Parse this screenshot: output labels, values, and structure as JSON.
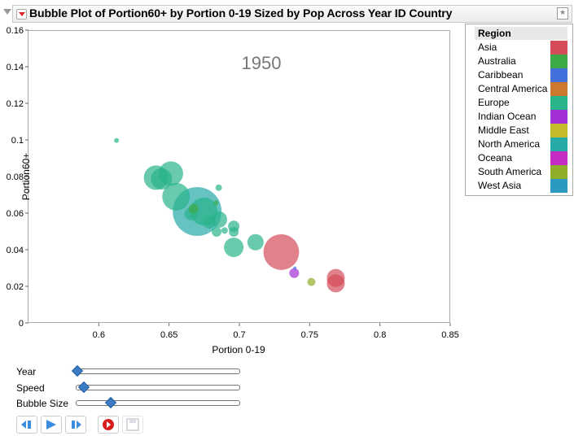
{
  "header": {
    "title": "Bubble Plot of Portion60+ by Portion 0-19 Sized by Pop Across Year ID Country"
  },
  "chart_data": {
    "type": "scatter",
    "title": "Bubble Plot of Portion60+ by Portion 0-19 Sized by Pop Across Year ID Country",
    "xlabel": "Portion 0-19",
    "ylabel": "Portion60+",
    "xlim": [
      0.55,
      0.85
    ],
    "ylim": [
      0,
      0.16
    ],
    "xticks": [
      "0.6",
      "0.65",
      "0.7",
      "0.75",
      "0.8",
      "0.85"
    ],
    "yticks": [
      "0",
      "0.02",
      "0.04",
      "0.06",
      "0.08",
      "0.1",
      "0.12",
      "0.14",
      "0.16"
    ],
    "grid": false,
    "frame_label": "1950",
    "points": [
      {
        "region": "North America",
        "x": 0.67,
        "y": 0.0609,
        "size": 900
      },
      {
        "region": "Asia",
        "x": 0.7298,
        "y": 0.0387,
        "size": 480
      },
      {
        "region": "Europe",
        "x": 0.655,
        "y": 0.069,
        "size": 290
      },
      {
        "region": "Europe",
        "x": 0.6747,
        "y": 0.0609,
        "size": 290
      },
      {
        "region": "Europe",
        "x": 0.6407,
        "y": 0.0794,
        "size": 225
      },
      {
        "region": "Europe",
        "x": 0.6513,
        "y": 0.0816,
        "size": 225
      },
      {
        "region": "Europe",
        "x": 0.6446,
        "y": 0.0787,
        "size": 170
      },
      {
        "region": "Europe",
        "x": 0.696,
        "y": 0.0413,
        "size": 144
      },
      {
        "region": "Asia",
        "x": 0.7686,
        "y": 0.0246,
        "size": 121
      },
      {
        "region": "Asia",
        "x": 0.7686,
        "y": 0.0216,
        "size": 121
      },
      {
        "region": "Europe",
        "x": 0.7115,
        "y": 0.0441,
        "size": 100
      },
      {
        "region": "Europe",
        "x": 0.6855,
        "y": 0.0565,
        "size": 100
      },
      {
        "region": "Europe",
        "x": 0.6655,
        "y": 0.0596,
        "size": 64
      },
      {
        "region": "Europe",
        "x": 0.6785,
        "y": 0.0551,
        "size": 64
      },
      {
        "region": "Europe",
        "x": 0.696,
        "y": 0.0528,
        "size": 49
      },
      {
        "region": "Europe",
        "x": 0.696,
        "y": 0.0498,
        "size": 36
      },
      {
        "region": "Europe",
        "x": 0.6838,
        "y": 0.0498,
        "size": 36
      },
      {
        "region": "Europe",
        "x": 0.6895,
        "y": 0.0505,
        "size": 16
      },
      {
        "region": "Australia",
        "x": 0.6674,
        "y": 0.0624,
        "size": 36
      },
      {
        "region": "Australia",
        "x": 0.6835,
        "y": 0.0656,
        "size": 9
      },
      {
        "region": "Indian Ocean",
        "x": 0.739,
        "y": 0.0272,
        "size": 36
      },
      {
        "region": "South America",
        "x": 0.7512,
        "y": 0.0224,
        "size": 25
      },
      {
        "region": "Europe",
        "x": 0.6853,
        "y": 0.0739,
        "size": 16
      },
      {
        "region": "Europe",
        "x": 0.6126,
        "y": 0.0997,
        "size": 9
      },
      {
        "region": "Caribbean",
        "x": 0.7395,
        "y": 0.03,
        "size": 4
      }
    ]
  },
  "legend": {
    "title": "Region",
    "items": [
      {
        "label": "Asia",
        "color": "#d44b5a"
      },
      {
        "label": "Australia",
        "color": "#3daa48"
      },
      {
        "label": "Caribbean",
        "color": "#4470dc"
      },
      {
        "label": "Central America",
        "color": "#cc782e"
      },
      {
        "label": "Europe",
        "color": "#29b48a"
      },
      {
        "label": "Indian Ocean",
        "color": "#a22ed6"
      },
      {
        "label": "Middle East",
        "color": "#c4ba2a"
      },
      {
        "label": "North America",
        "color": "#26aaa8"
      },
      {
        "label": "Oceana",
        "color": "#c42ac4"
      },
      {
        "label": "South America",
        "color": "#8fae2a"
      },
      {
        "label": "West Asia",
        "color": "#2a9ac0"
      }
    ]
  },
  "controls": {
    "year": {
      "label": "Year",
      "value": 0
    },
    "speed": {
      "label": "Speed",
      "value": 0.04
    },
    "bubble_size": {
      "label": "Bubble Size",
      "value": 0.2
    }
  }
}
